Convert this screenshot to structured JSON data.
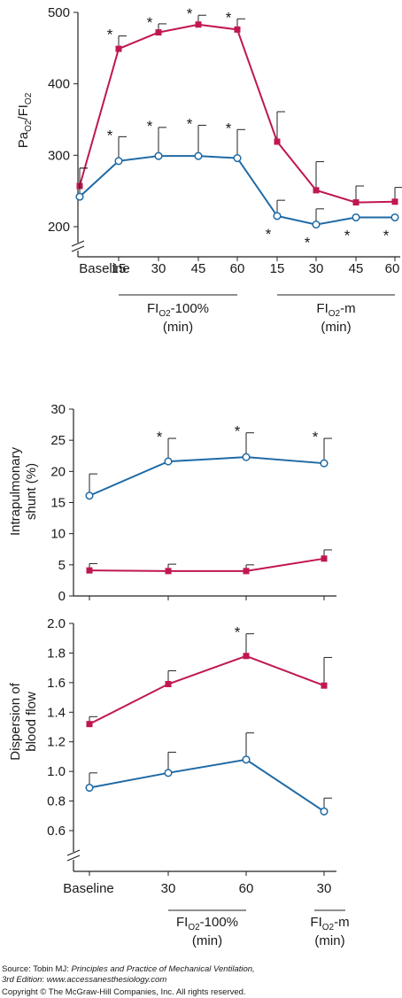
{
  "chart_data": [
    {
      "type": "line",
      "ylabel": {
        "main": "Pa",
        "sub1": "O2",
        "mid": "/FI",
        "sub2": "O2"
      },
      "ylim": [
        200,
        500
      ],
      "y_ticks": [
        200,
        300,
        400,
        500
      ],
      "y_axis_break": true,
      "categories": [
        "Baseline",
        "15",
        "30",
        "45",
        "60",
        "15",
        "30",
        "45",
        "60"
      ],
      "groups": [
        {
          "main": "FI",
          "sub": "O2",
          "suffix": "-100%",
          "unit": "(min)"
        },
        {
          "main": "FI",
          "sub": "O2",
          "suffix": "-m",
          "unit": "(min)"
        }
      ],
      "series": [
        {
          "color": "#c0174f",
          "marker": "filled-square",
          "values": [
            257,
            449,
            472,
            483,
            476,
            319,
            251,
            234,
            235
          ],
          "errors": [
            25,
            18,
            12,
            13,
            15,
            42,
            40,
            23,
            20
          ],
          "sig": [
            false,
            true,
            true,
            true,
            true,
            false,
            false,
            false,
            false
          ],
          "sig_pos": "above"
        },
        {
          "color": "#1f6aa5",
          "marker": "open-circle",
          "values": [
            242,
            292,
            299,
            299,
            296,
            215,
            203,
            213,
            213
          ],
          "errors": [
            40,
            34,
            40,
            43,
            40,
            22,
            22,
            0,
            0
          ],
          "sig": [
            false,
            true,
            true,
            true,
            true,
            true,
            true,
            true,
            true
          ],
          "sig_pos": [
            "above",
            "above",
            "above",
            "above",
            "above",
            "below",
            "below",
            "below",
            "below"
          ]
        }
      ]
    },
    {
      "type": "line",
      "ylabel": {
        "line1": "Intrapulmonary",
        "line2": "shunt (%)"
      },
      "ylim": [
        0,
        30
      ],
      "y_ticks": [
        0,
        5,
        10,
        15,
        20,
        25,
        30
      ],
      "categories": [
        "Baseline",
        "30",
        "60",
        "30"
      ],
      "series": [
        {
          "color": "#1f6aa5",
          "marker": "open-circle",
          "values": [
            16.1,
            21.6,
            22.3,
            21.3
          ],
          "errors": [
            3.5,
            3.7,
            3.9,
            4.0
          ],
          "sig": [
            false,
            true,
            true,
            true
          ]
        },
        {
          "color": "#c0174f",
          "marker": "filled-square",
          "values": [
            4.1,
            4.0,
            4.0,
            6.0
          ],
          "errors": [
            1.1,
            1.1,
            1.0,
            1.4
          ],
          "sig": [
            false,
            false,
            false,
            false
          ]
        }
      ]
    },
    {
      "type": "line",
      "ylabel": {
        "line1": "Dispersion of",
        "line2": "blood flow"
      },
      "ylim": [
        0.6,
        2.0
      ],
      "y_ticks": [
        "0.6",
        "0.8",
        "1.0",
        "1.2",
        "1.4",
        "1.6",
        "1.8",
        "2.0"
      ],
      "y_axis_break": true,
      "categories": [
        "Baseline",
        "30",
        "60",
        "30"
      ],
      "groups": [
        {
          "main": "FI",
          "sub": "O2",
          "suffix": "-100%",
          "unit": "(min)"
        },
        {
          "main": "FI",
          "sub": "O2",
          "suffix": "-m",
          "unit": "(min)"
        }
      ],
      "series": [
        {
          "color": "#c0174f",
          "marker": "filled-square",
          "values": [
            1.32,
            1.59,
            1.78,
            1.58
          ],
          "errors": [
            0.05,
            0.09,
            0.15,
            0.19
          ],
          "sig": [
            false,
            false,
            true,
            false
          ]
        },
        {
          "color": "#1f6aa5",
          "marker": "open-circle",
          "values": [
            0.89,
            0.99,
            1.08,
            0.73
          ],
          "errors": [
            0.1,
            0.14,
            0.18,
            0.09
          ],
          "sig": [
            false,
            false,
            false,
            false
          ]
        }
      ]
    }
  ],
  "footer": {
    "source_prefix": "Source: Tobin MJ: ",
    "book_title": "Principles and Practice of Mechanical Ventilation,",
    "edition": "3rd Edition",
    "site_prefix": ": ",
    "site": "www.accessanesthesiology.com",
    "copyright": "Copyright © The McGraw-Hill Companies, Inc. All rights reserved."
  }
}
